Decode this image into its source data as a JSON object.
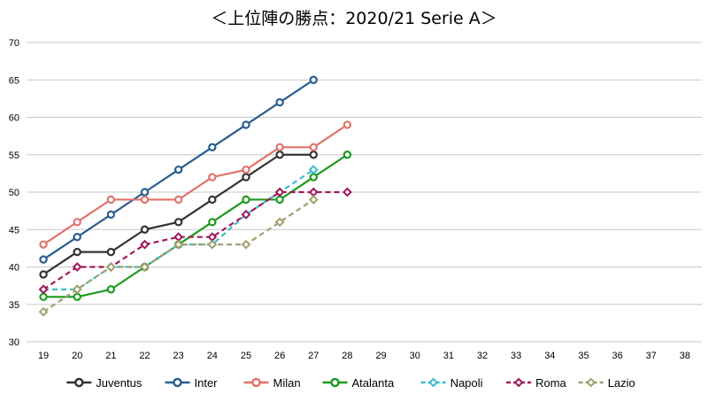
{
  "chart_data": {
    "type": "line",
    "title": "＜上位陣の勝点：2020/21 Serie A＞",
    "xlabel": "",
    "ylabel": "",
    "x": [
      19,
      20,
      21,
      22,
      23,
      24,
      25,
      26,
      27,
      28,
      29,
      30,
      31,
      32,
      33,
      34,
      35,
      36,
      37,
      38
    ],
    "ylim": [
      30,
      70
    ],
    "yticks": [
      30,
      35,
      40,
      45,
      50,
      55,
      60,
      65,
      70
    ],
    "grid": "horizontal",
    "legend": "bottom",
    "series": [
      {
        "name": "Juventus",
        "color": "#333333",
        "style": "solid",
        "values": [
          39,
          42,
          42,
          45,
          46,
          49,
          52,
          55,
          55,
          null,
          null,
          null,
          null,
          null,
          null,
          null,
          null,
          null,
          null,
          null
        ]
      },
      {
        "name": "Inter",
        "color": "#2a5d8f",
        "style": "solid",
        "values": [
          41,
          44,
          47,
          50,
          53,
          56,
          59,
          62,
          65,
          null,
          null,
          null,
          null,
          null,
          null,
          null,
          null,
          null,
          null,
          null
        ]
      },
      {
        "name": "Milan",
        "color": "#e0736b",
        "style": "solid",
        "values": [
          43,
          46,
          49,
          49,
          49,
          52,
          53,
          56,
          56,
          59,
          null,
          null,
          null,
          null,
          null,
          null,
          null,
          null,
          null,
          null
        ]
      },
      {
        "name": "Atalanta",
        "color": "#1f9a1f",
        "style": "solid",
        "values": [
          36,
          36,
          37,
          40,
          43,
          46,
          49,
          49,
          52,
          55,
          null,
          null,
          null,
          null,
          null,
          null,
          null,
          null,
          null,
          null
        ]
      },
      {
        "name": "Napoli",
        "color": "#3bbcd0",
        "style": "dashed",
        "values": [
          37,
          37,
          40,
          40,
          43,
          43,
          47,
          50,
          53,
          null,
          null,
          null,
          null,
          null,
          null,
          null,
          null,
          null,
          null,
          null
        ]
      },
      {
        "name": "Roma",
        "color": "#a0195a",
        "style": "dashed",
        "values": [
          37,
          40,
          40,
          43,
          44,
          44,
          47,
          50,
          50,
          50,
          null,
          null,
          null,
          null,
          null,
          null,
          null,
          null,
          null,
          null
        ]
      },
      {
        "name": "Lazio",
        "color": "#a39f72",
        "style": "dashed",
        "values": [
          34,
          37,
          40,
          40,
          43,
          43,
          43,
          46,
          49,
          null,
          null,
          null,
          null,
          null,
          null,
          null,
          null,
          null,
          null,
          null
        ]
      }
    ]
  }
}
